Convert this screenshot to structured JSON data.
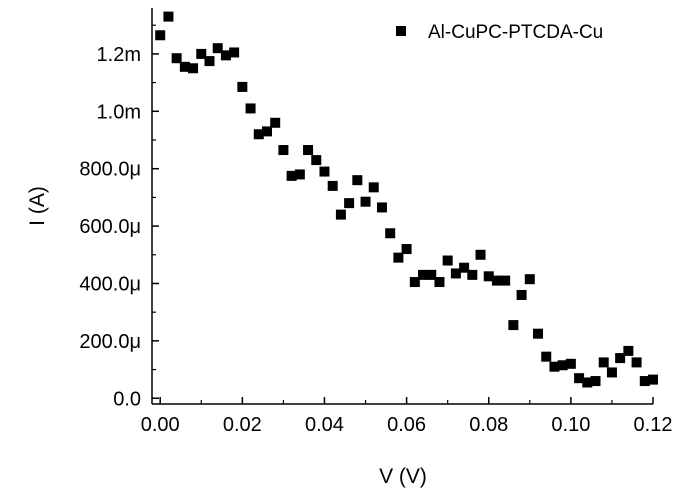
{
  "chart_data": {
    "type": "scatter",
    "title": "",
    "xlabel": "V (V)",
    "ylabel": "I (A)",
    "xlim": [
      -0.002,
      0.12
    ],
    "ylim": [
      -2e-05,
      0.00136
    ],
    "x_ticks": [
      0.0,
      0.02,
      0.04,
      0.06,
      0.08,
      0.1,
      0.12
    ],
    "x_tick_labels": [
      "0.00",
      "0.02",
      "0.04",
      "0.06",
      "0.08",
      "0.10",
      "0.12"
    ],
    "y_ticks": [
      0,
      0.0002,
      0.0004,
      0.0006,
      0.0008,
      0.001,
      0.0012
    ],
    "y_tick_labels": [
      "0.0",
      "200.0μ",
      "400.0μ",
      "600.0μ",
      "800.0μ",
      "1.0m",
      "1.2m"
    ],
    "grid": false,
    "legend_position": "top-right",
    "marker": "square",
    "series": [
      {
        "name": "Al-CuPC-PTCDA-Cu",
        "color": "#000000",
        "x": [
          0.0,
          0.002,
          0.004,
          0.006,
          0.008,
          0.01,
          0.012,
          0.014,
          0.016,
          0.018,
          0.02,
          0.022,
          0.024,
          0.026,
          0.028,
          0.03,
          0.032,
          0.034,
          0.036,
          0.038,
          0.04,
          0.042,
          0.044,
          0.046,
          0.048,
          0.05,
          0.052,
          0.054,
          0.056,
          0.058,
          0.06,
          0.062,
          0.064,
          0.066,
          0.068,
          0.07,
          0.072,
          0.074,
          0.076,
          0.078,
          0.08,
          0.082,
          0.084,
          0.086,
          0.088,
          0.09,
          0.092,
          0.094,
          0.096,
          0.098,
          0.1,
          0.102,
          0.104,
          0.106,
          0.108,
          0.11,
          0.112,
          0.114,
          0.116,
          0.118,
          0.12
        ],
        "y": [
          0.001265,
          0.00133,
          0.001185,
          0.001155,
          0.00115,
          0.0012,
          0.001175,
          0.00122,
          0.001195,
          0.001205,
          0.001085,
          0.00101,
          0.00092,
          0.00093,
          0.00096,
          0.000865,
          0.000775,
          0.00078,
          0.000865,
          0.00083,
          0.00079,
          0.00074,
          0.00064,
          0.00068,
          0.00076,
          0.000685,
          0.000735,
          0.000665,
          0.000575,
          0.00049,
          0.00052,
          0.000405,
          0.00043,
          0.00043,
          0.000405,
          0.00048,
          0.000435,
          0.000455,
          0.00043,
          0.0005,
          0.000425,
          0.00041,
          0.00041,
          0.000255,
          0.00036,
          0.000415,
          0.000225,
          0.000145,
          0.00011,
          0.000115,
          0.00012,
          7e-05,
          5.5e-05,
          6e-05,
          0.000125,
          9e-05,
          0.00014,
          0.000165,
          0.000125,
          6e-05,
          6.5e-05
        ]
      }
    ]
  }
}
